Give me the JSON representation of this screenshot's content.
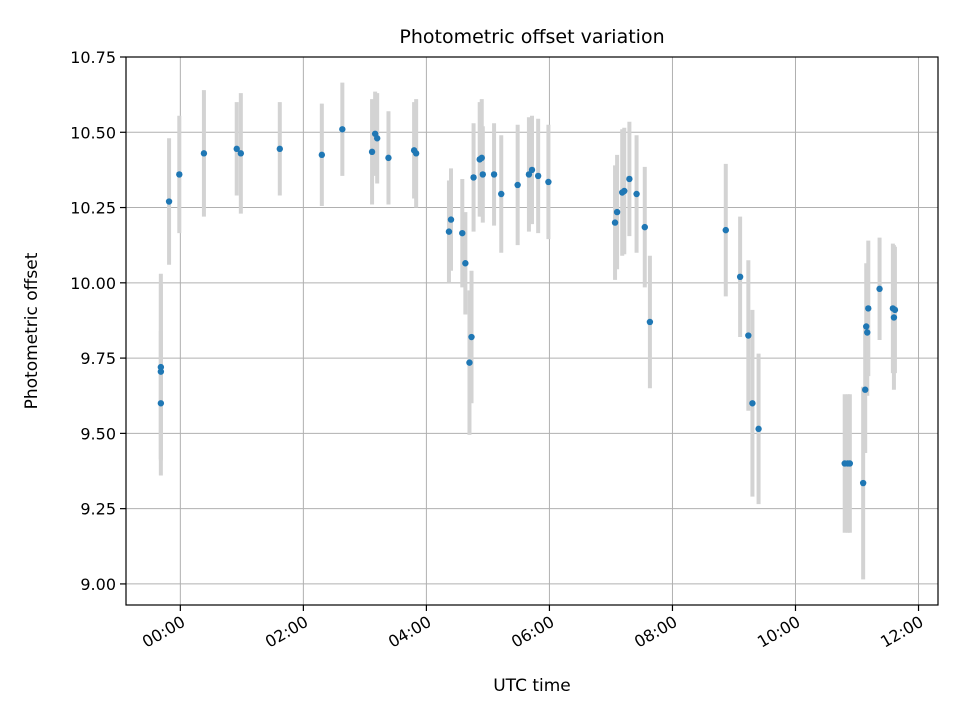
{
  "chart_data": {
    "type": "scatter",
    "title": "Photometric offset variation",
    "xlabel": "UTC time",
    "ylabel": "Photometric offset",
    "xlim": [
      "23:07",
      "12:19"
    ],
    "ylim": [
      8.93,
      10.75
    ],
    "x_ticks": [
      "00:00",
      "02:00",
      "04:00",
      "06:00",
      "08:00",
      "10:00",
      "12:00"
    ],
    "y_ticks": [
      "9.00",
      "9.25",
      "9.50",
      "9.75",
      "10.00",
      "10.25",
      "10.50",
      "10.75"
    ],
    "grid": true,
    "legend": "none",
    "colors": {
      "point": "#1f77b4",
      "errorbar": "#d3d3d3",
      "grid": "#b0b0b0",
      "axis": "#000000"
    },
    "series": [
      {
        "points": [
          {
            "t": "23:41",
            "y": 9.6,
            "err": 0.24
          },
          {
            "t": "23:41",
            "y": 9.705,
            "err": 0.29
          },
          {
            "t": "23:41",
            "y": 9.72,
            "err": 0.31
          },
          {
            "t": "23:49",
            "y": 10.27,
            "err": 0.21
          },
          {
            "t": "23:59",
            "y": 10.36,
            "err": 0.195
          },
          {
            "t": "00:23",
            "y": 10.43,
            "err": 0.21
          },
          {
            "t": "00:55",
            "y": 10.445,
            "err": 0.155
          },
          {
            "t": "00:59",
            "y": 10.43,
            "err": 0.2
          },
          {
            "t": "01:37",
            "y": 10.445,
            "err": 0.155
          },
          {
            "t": "02:18",
            "y": 10.425,
            "err": 0.17
          },
          {
            "t": "02:38",
            "y": 10.51,
            "err": 0.155
          },
          {
            "t": "03:07",
            "y": 10.435,
            "err": 0.175
          },
          {
            "t": "03:10",
            "y": 10.495,
            "err": 0.14
          },
          {
            "t": "03:12",
            "y": 10.48,
            "err": 0.15
          },
          {
            "t": "03:23",
            "y": 10.415,
            "err": 0.155
          },
          {
            "t": "03:48",
            "y": 10.44,
            "err": 0.16
          },
          {
            "t": "03:50",
            "y": 10.43,
            "err": 0.18
          },
          {
            "t": "04:22",
            "y": 10.17,
            "err": 0.17
          },
          {
            "t": "04:24",
            "y": 10.21,
            "err": 0.17
          },
          {
            "t": "04:35",
            "y": 10.165,
            "err": 0.18
          },
          {
            "t": "04:38",
            "y": 10.065,
            "err": 0.17
          },
          {
            "t": "04:42",
            "y": 9.735,
            "err": 0.24
          },
          {
            "t": "04:44",
            "y": 9.82,
            "err": 0.22
          },
          {
            "t": "04:46",
            "y": 10.35,
            "err": 0.18
          },
          {
            "t": "04:52",
            "y": 10.41,
            "err": 0.19
          },
          {
            "t": "04:54",
            "y": 10.415,
            "err": 0.195
          },
          {
            "t": "04:55",
            "y": 10.36,
            "err": 0.16
          },
          {
            "t": "05:06",
            "y": 10.36,
            "err": 0.17
          },
          {
            "t": "05:13",
            "y": 10.295,
            "err": 0.195
          },
          {
            "t": "05:29",
            "y": 10.325,
            "err": 0.2
          },
          {
            "t": "05:40",
            "y": 10.36,
            "err": 0.19
          },
          {
            "t": "05:43",
            "y": 10.375,
            "err": 0.18
          },
          {
            "t": "05:49",
            "y": 10.355,
            "err": 0.19
          },
          {
            "t": "05:59",
            "y": 10.335,
            "err": 0.19
          },
          {
            "t": "07:04",
            "y": 10.2,
            "err": 0.19
          },
          {
            "t": "07:06",
            "y": 10.235,
            "err": 0.19
          },
          {
            "t": "07:11",
            "y": 10.3,
            "err": 0.21
          },
          {
            "t": "07:13",
            "y": 10.305,
            "err": 0.21
          },
          {
            "t": "07:18",
            "y": 10.345,
            "err": 0.19
          },
          {
            "t": "07:25",
            "y": 10.295,
            "err": 0.195
          },
          {
            "t": "07:33",
            "y": 10.185,
            "err": 0.2
          },
          {
            "t": "07:38",
            "y": 9.87,
            "err": 0.22
          },
          {
            "t": "08:52",
            "y": 10.175,
            "err": 0.22
          },
          {
            "t": "09:06",
            "y": 10.02,
            "err": 0.2
          },
          {
            "t": "09:14",
            "y": 9.825,
            "err": 0.25
          },
          {
            "t": "09:18",
            "y": 9.6,
            "err": 0.31
          },
          {
            "t": "09:24",
            "y": 9.515,
            "err": 0.25
          },
          {
            "t": "10:48",
            "y": 9.4,
            "err": 0.23
          },
          {
            "t": "10:51",
            "y": 9.4,
            "err": 0.23
          },
          {
            "t": "10:53",
            "y": 9.4,
            "err": 0.23
          },
          {
            "t": "11:06",
            "y": 9.335,
            "err": 0.32
          },
          {
            "t": "11:08",
            "y": 9.645,
            "err": 0.21
          },
          {
            "t": "11:09",
            "y": 9.855,
            "err": 0.21
          },
          {
            "t": "11:10",
            "y": 9.835,
            "err": 0.21
          },
          {
            "t": "11:11",
            "y": 9.915,
            "err": 0.225
          },
          {
            "t": "11:22",
            "y": 9.98,
            "err": 0.17
          },
          {
            "t": "11:35",
            "y": 9.915,
            "err": 0.215
          },
          {
            "t": "11:36",
            "y": 9.885,
            "err": 0.24
          },
          {
            "t": "11:37",
            "y": 9.91,
            "err": 0.21
          }
        ]
      }
    ]
  }
}
